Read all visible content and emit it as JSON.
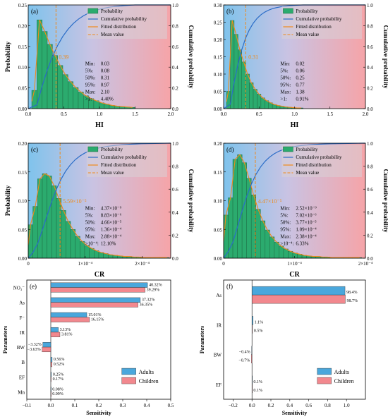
{
  "legend": {
    "probability": "Probability",
    "cumulative": "Cumulative probability",
    "fitted": "Fitted distribution",
    "mean": "Mean value"
  },
  "colors": {
    "bar": "#2bab6e",
    "bar_edge": "#1f6b43",
    "cdf": "#2a6cc7",
    "fit": "#f08a1a",
    "bg_left": "#7fc3ec",
    "bg_right": "#f6a4a8",
    "adults": "#4aa7dc",
    "children": "#f2888e"
  },
  "chart_data": [
    {
      "panel": "(a)",
      "type": "bar",
      "ylabel": "Probability",
      "y2label": "Cumulative probability",
      "xlabel": "HI",
      "xlim": [
        0,
        2.0
      ],
      "ylim": [
        0,
        0.25
      ],
      "y2lim": [
        0,
        1.0
      ],
      "xticks": [
        "0.0",
        "0.5",
        "1.0",
        "1.5",
        "2.0"
      ],
      "yticks": [
        "0.00",
        "0.05",
        "0.10",
        "0.15",
        "0.20",
        "0.25"
      ],
      "y2ticks": [
        "0.0",
        "0.2",
        "0.4",
        "0.6",
        "0.8",
        "1.0"
      ],
      "bin_start": 0.05,
      "bin_width": 0.0725,
      "values": [
        0.044,
        0.214,
        0.186,
        0.155,
        0.128,
        0.104,
        0.082,
        0.065,
        0.051,
        0.04,
        0.031,
        0.024,
        0.019,
        0.014,
        0.011,
        0.008,
        0.006,
        0.005,
        0.004,
        0.003
      ],
      "mean": 0.39,
      "mean_label": "0.39",
      "stats": [
        [
          "Min:",
          "0.03"
        ],
        [
          "5%:",
          "0.08"
        ],
        [
          "50%:",
          "0.31"
        ],
        [
          "95%:",
          "0.97"
        ],
        [
          "Max:",
          "2.10"
        ],
        [
          ">1:",
          "4.40%"
        ]
      ]
    },
    {
      "panel": "(b)",
      "type": "bar",
      "ylabel": "",
      "y2label": "Cumulative probability",
      "xlabel": "HI",
      "xlim": [
        0,
        2.0
      ],
      "ylim": [
        0,
        0.3
      ],
      "y2lim": [
        0,
        1.0
      ],
      "xticks": [
        "0.0",
        "0.5",
        "1.0",
        "1.5",
        "2.0"
      ],
      "yticks": [
        "0.00",
        "0.05",
        "0.10",
        "0.15",
        "0.20",
        "0.25",
        "0.30"
      ],
      "y2ticks": [
        "0.0",
        "0.2",
        "0.4",
        "0.6",
        "0.8",
        "1.0"
      ],
      "bin_start": 0.04,
      "bin_width": 0.054,
      "values": [
        0.05,
        0.255,
        0.215,
        0.17,
        0.135,
        0.1,
        0.075,
        0.056,
        0.042,
        0.031,
        0.023,
        0.017,
        0.012,
        0.009,
        0.007,
        0.005,
        0.004,
        0.003,
        0.002,
        0.002
      ],
      "mean": 0.31,
      "mean_label": "0.31",
      "stats": [
        [
          "Min:",
          "0.02"
        ],
        [
          "5%:",
          "0.06"
        ],
        [
          "50%:",
          "0.25"
        ],
        [
          "95%:",
          "0.77"
        ],
        [
          "Max:",
          "1.38"
        ],
        [
          ">1:",
          "0.91%"
        ]
      ]
    },
    {
      "panel": "(c)",
      "type": "bar",
      "ylabel": "Probability",
      "y2label": "Cumulative probability",
      "xlabel": "CR",
      "xlim": [
        0,
        0.00025
      ],
      "ylim": [
        0,
        0.2
      ],
      "y2lim": [
        0,
        1.0
      ],
      "xticks": [
        "0",
        "1×10⁻⁴",
        "2×10⁻⁴"
      ],
      "xtick_vals": [
        0,
        0.0001,
        0.0002
      ],
      "yticks": [
        "0.00",
        "0.05",
        "0.10",
        "0.15",
        "0.20"
      ],
      "y2ticks": [
        "0.0",
        "0.2",
        "0.4",
        "0.6",
        "0.8",
        "1.0"
      ],
      "bin_start": 0,
      "bin_width": 8.25e-06,
      "values": [
        0.058,
        0.09,
        0.138,
        0.147,
        0.143,
        0.126,
        0.104,
        0.083,
        0.064,
        0.05,
        0.038,
        0.029,
        0.022,
        0.017,
        0.013,
        0.01,
        0.008,
        0.006,
        0.005,
        0.004,
        0.003,
        0.003,
        0.002,
        0.002,
        0.001,
        0.001,
        0.001,
        0.001,
        0.001,
        0.001
      ],
      "mean": 5.59e-05,
      "mean_label": "5.59×10⁻⁵",
      "stats": [
        [
          "Min:",
          "4.37×10⁻⁹"
        ],
        [
          "5%:",
          "8.83×10⁻⁶"
        ],
        [
          "50%:",
          "4.66×10⁻⁵"
        ],
        [
          "95%:",
          "1.36×10⁻⁴"
        ],
        [
          "Max:",
          "2.88×10⁻⁴"
        ],
        [
          ">10⁻⁴:",
          "12.10%"
        ]
      ]
    },
    {
      "panel": "(d)",
      "type": "bar",
      "ylabel": "",
      "y2label": "Cumulative probability",
      "xlabel": "CR",
      "xlim": [
        0,
        0.0002
      ],
      "ylim": [
        0,
        0.2
      ],
      "y2lim": [
        0,
        1.0
      ],
      "xticks": [
        "0",
        "1×10⁻⁴",
        "2×10⁻⁴"
      ],
      "xtick_vals": [
        0,
        0.0001,
        0.0002
      ],
      "yticks": [
        "0.00",
        "0.05",
        "0.10",
        "0.15",
        "0.20"
      ],
      "y2ticks": [
        "0.0",
        "0.2",
        "0.4",
        "0.6",
        "0.8",
        "1.0"
      ],
      "bin_start": 0,
      "bin_width": 6.5e-06,
      "values": [
        0.075,
        0.105,
        0.172,
        0.18,
        0.166,
        0.139,
        0.11,
        0.085,
        0.065,
        0.049,
        0.037,
        0.028,
        0.021,
        0.016,
        0.012,
        0.009,
        0.007,
        0.005,
        0.004,
        0.003,
        0.003,
        0.002,
        0.002,
        0.001,
        0.001,
        0.001,
        0.001,
        0.001,
        0.001,
        0.001
      ],
      "mean": 4.47e-05,
      "mean_label": "4.47×10⁻⁵",
      "stats": [
        [
          "Min:",
          "2.52×10⁻⁹"
        ],
        [
          "5%:",
          "7.02×10⁻⁶"
        ],
        [
          "50%:",
          "3.77×10⁻⁵"
        ],
        [
          "95%:",
          "1.09×10⁻⁴"
        ],
        [
          "Max:",
          "2.38×10⁻⁴"
        ],
        [
          ">10⁻⁴:",
          "6.33%"
        ]
      ]
    },
    {
      "panel": "(e)",
      "type": "bar",
      "orientation": "horizontal",
      "xlabel": "Sensitivity",
      "ylabel": "Parameters",
      "xlim": [
        -0.1,
        0.5
      ],
      "xticks": [
        "−0.1",
        "0.0",
        "0.1",
        "0.2",
        "0.3",
        "0.4",
        "0.5"
      ],
      "xtick_vals": [
        -0.1,
        0,
        0.1,
        0.2,
        0.3,
        0.4,
        0.5
      ],
      "categories": [
        "NO₃⁻",
        "As",
        "F⁻",
        "IR",
        "BW",
        "B",
        "EF",
        "Mn"
      ],
      "series": [
        {
          "name": "Adults",
          "values": [
            0.4032,
            0.3732,
            0.1501,
            0.0313,
            -0.0332,
            0.0056,
            0.0025,
            0.0008
          ],
          "labels": [
            "40.32%",
            "37.32%",
            "15.01%",
            "3.13%",
            "−3.32%",
            "0.56%",
            "0.25%",
            "0.08%"
          ]
        },
        {
          "name": "Children",
          "values": [
            0.3929,
            0.3635,
            0.1615,
            0.0381,
            -0.0363,
            0.0052,
            0.0017,
            0.0009
          ],
          "labels": [
            "39.29%",
            "36.35%",
            "16.15%",
            "3.81%",
            "−3.63%",
            "0.52%",
            "0.17%",
            "0.09%"
          ]
        }
      ]
    },
    {
      "panel": "(f)",
      "type": "bar",
      "orientation": "horizontal",
      "xlabel": "Sensitivity",
      "ylabel": "Parameters",
      "xlim": [
        -0.3,
        1.2
      ],
      "xticks": [
        "−0.2",
        "0.0",
        "0.2",
        "0.4",
        "0.6",
        "0.8",
        "1.0"
      ],
      "xtick_vals": [
        -0.2,
        0,
        0.2,
        0.4,
        0.6,
        0.8,
        1.0
      ],
      "categories": [
        "As",
        "IR",
        "BW",
        "EF"
      ],
      "series": [
        {
          "name": "Adults",
          "values": [
            0.984,
            0.011,
            -0.004,
            0.001
          ],
          "labels": [
            "98.4%",
            "1.1%",
            "−0.4%",
            "0.1%"
          ]
        },
        {
          "name": "Children",
          "values": [
            0.987,
            0.005,
            -0.007,
            0.001
          ],
          "labels": [
            "98.7%",
            "0.5%",
            "−0.7%",
            "0.1%"
          ]
        }
      ]
    }
  ]
}
